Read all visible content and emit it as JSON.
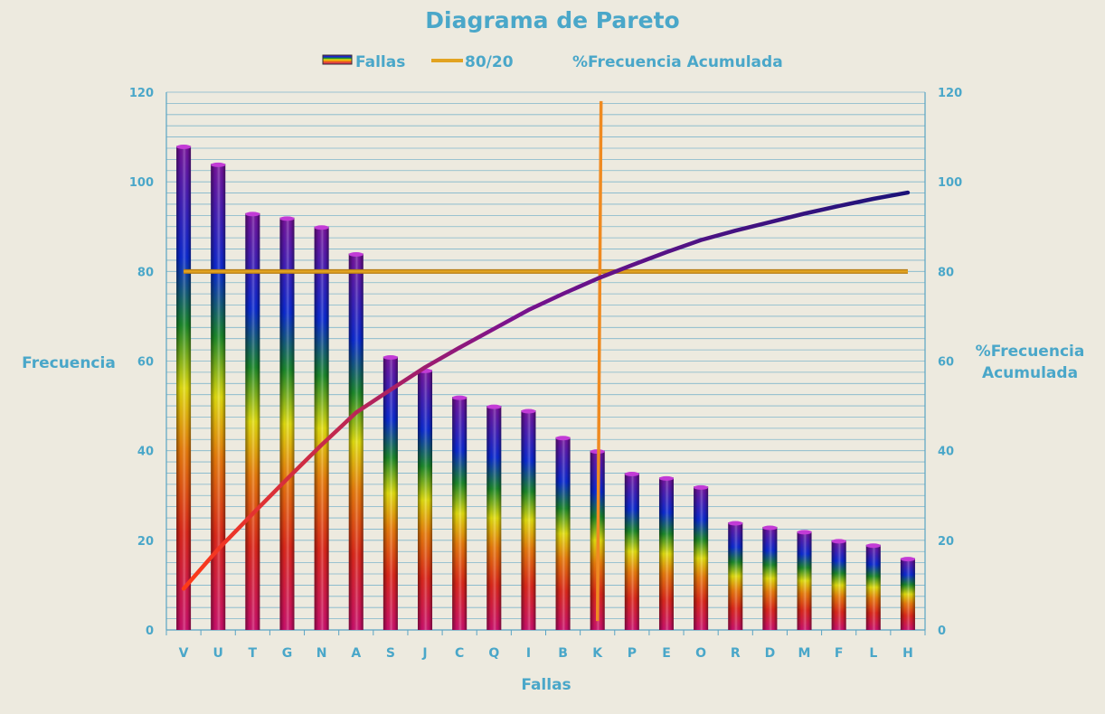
{
  "colors": {
    "background": "#edeadf",
    "text": "#4aa7c9",
    "grid": "#5aa4c4",
    "threshold_line": "#e2a321",
    "cutoff_line": "#ef8a21",
    "cumulative_start": "#ff3b17",
    "cumulative_mid": "#7b128e",
    "cumulative_end": "#1b1278"
  },
  "chart_data": {
    "type": "bar",
    "title": "Diagrama de Pareto",
    "xlabel": "Fallas",
    "ylabel": "Frecuencia",
    "y2label_line1": "%Frecuencia",
    "y2label_line2": "Acumulada",
    "ylim": [
      0,
      120
    ],
    "y2lim": [
      0,
      120
    ],
    "yticks": [
      "0",
      "20",
      "40",
      "60",
      "80",
      "100",
      "120"
    ],
    "y2ticks": [
      "0",
      "20",
      "40",
      "60",
      "80",
      "100",
      "120"
    ],
    "grid": true,
    "legend_position": "top",
    "categories": [
      "V",
      "U",
      "T",
      "G",
      "N",
      "A",
      "S",
      "J",
      "C",
      "Q",
      "I",
      "B",
      "K",
      "P",
      "E",
      "O",
      "R",
      "D",
      "M",
      "F",
      "L",
      "H"
    ],
    "series": [
      {
        "name": "Fallas",
        "type": "bar",
        "axis": "left",
        "values": [
          108,
          104,
          93,
          92,
          90,
          84,
          61,
          58,
          52,
          50,
          49,
          43,
          40,
          35,
          34,
          32,
          24,
          23,
          22,
          20,
          19,
          16
        ]
      },
      {
        "name": "80/20",
        "type": "line",
        "axis": "right",
        "values": [
          80,
          80,
          80,
          80,
          80,
          80,
          80,
          80,
          80,
          80,
          80,
          80,
          80,
          80,
          80,
          80,
          80,
          80,
          80,
          80,
          80,
          80
        ]
      },
      {
        "name": "%Frecuencia Acumulada",
        "type": "line",
        "axis": "right",
        "values": [
          9.2,
          18.0,
          25.9,
          33.7,
          41.3,
          48.5,
          53.6,
          58.6,
          63.0,
          67.2,
          71.4,
          75.0,
          78.4,
          81.4,
          84.3,
          87.0,
          89.1,
          91.0,
          92.9,
          94.6,
          96.2,
          97.6
        ]
      }
    ],
    "cutoff": {
      "category": "K",
      "y_top": 118,
      "y_bottom": 2
    }
  }
}
